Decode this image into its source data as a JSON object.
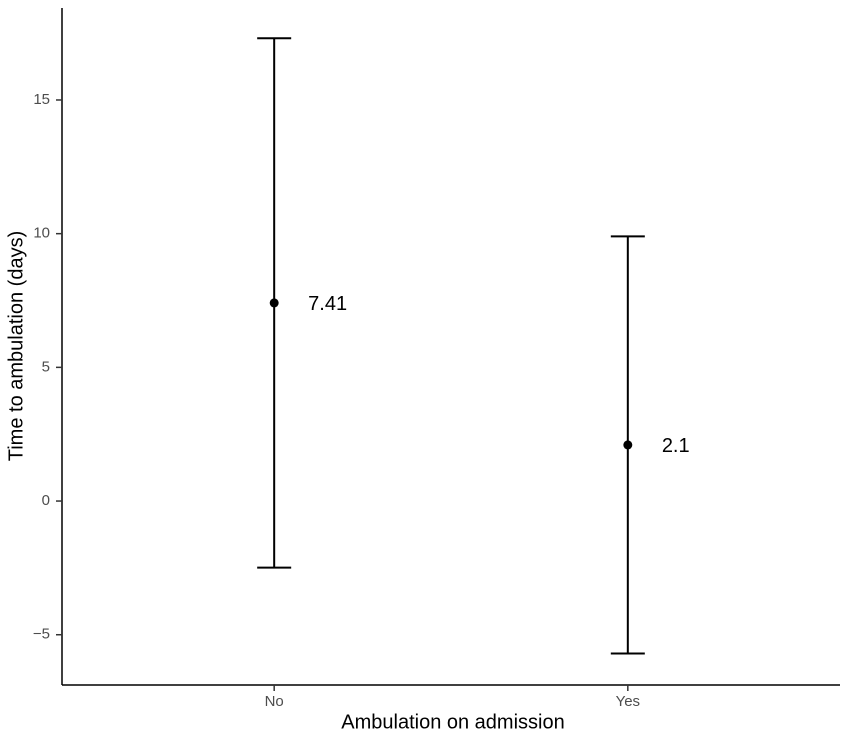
{
  "chart_data": {
    "type": "errorbar",
    "x_label": "Ambulation on admission",
    "y_label": "Time to ambulation (days)",
    "categories": [
      "No",
      "Yes"
    ],
    "values": [
      7.41,
      2.1
    ],
    "errors": [
      9.9,
      7.8
    ],
    "color": "#000000",
    "ylim": [
      -6.88,
      18.44
    ],
    "yticks": [
      {
        "value": -5,
        "label": "−5"
      },
      0,
      5,
      10,
      15
    ],
    "grid": false
  }
}
